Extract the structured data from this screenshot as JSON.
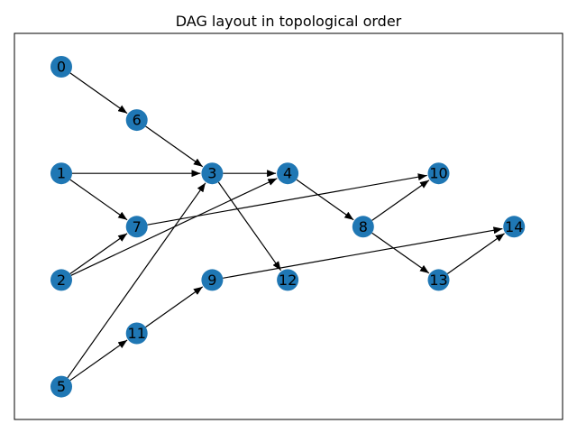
{
  "figure": {
    "title": "DAG layout in topological order"
  },
  "graph": {
    "node_color": "#1f77b4",
    "edge_color": "#000000",
    "nodes": [
      {
        "id": "0",
        "label": "0",
        "layer": 0,
        "row": 0
      },
      {
        "id": "1",
        "label": "1",
        "layer": 0,
        "row": 2
      },
      {
        "id": "2",
        "label": "2",
        "layer": 0,
        "row": 4
      },
      {
        "id": "5",
        "label": "5",
        "layer": 0,
        "row": 6
      },
      {
        "id": "6",
        "label": "6",
        "layer": 1,
        "row": 1
      },
      {
        "id": "7",
        "label": "7",
        "layer": 1,
        "row": 3
      },
      {
        "id": "11",
        "label": "11",
        "layer": 1,
        "row": 5
      },
      {
        "id": "3",
        "label": "3",
        "layer": 2,
        "row": 2
      },
      {
        "id": "9",
        "label": "9",
        "layer": 2,
        "row": 4
      },
      {
        "id": "4",
        "label": "4",
        "layer": 3,
        "row": 2
      },
      {
        "id": "12",
        "label": "12",
        "layer": 3,
        "row": 4
      },
      {
        "id": "8",
        "label": "8",
        "layer": 4,
        "row": 3
      },
      {
        "id": "10",
        "label": "10",
        "layer": 5,
        "row": 2
      },
      {
        "id": "13",
        "label": "13",
        "layer": 5,
        "row": 4
      },
      {
        "id": "14",
        "label": "14",
        "layer": 6,
        "row": 3
      }
    ],
    "edges": [
      {
        "from": "0",
        "to": "6"
      },
      {
        "from": "6",
        "to": "3"
      },
      {
        "from": "1",
        "to": "3"
      },
      {
        "from": "1",
        "to": "7"
      },
      {
        "from": "2",
        "to": "7"
      },
      {
        "from": "2",
        "to": "4"
      },
      {
        "from": "5",
        "to": "3"
      },
      {
        "from": "5",
        "to": "11"
      },
      {
        "from": "11",
        "to": "9"
      },
      {
        "from": "3",
        "to": "4"
      },
      {
        "from": "3",
        "to": "12"
      },
      {
        "from": "7",
        "to": "10"
      },
      {
        "from": "4",
        "to": "8"
      },
      {
        "from": "8",
        "to": "10"
      },
      {
        "from": "8",
        "to": "13"
      },
      {
        "from": "9",
        "to": "14"
      },
      {
        "from": "13",
        "to": "14"
      }
    ]
  }
}
